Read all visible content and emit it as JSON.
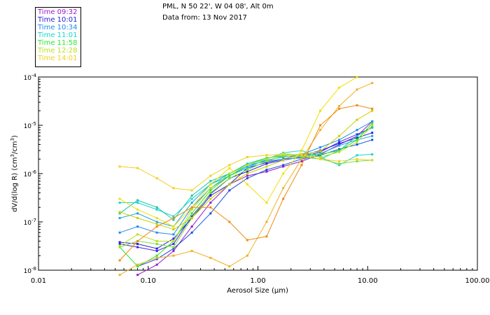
{
  "header": {
    "title": "PML, N 50 22', W 04 08', Alt 0m",
    "date": "Data from: 13 Nov 2017"
  },
  "legend": {
    "items": [
      {
        "label": "Time 09:32",
        "color": "#9a1ad0"
      },
      {
        "label": "Time 10:01",
        "color": "#2323d8"
      },
      {
        "label": "Time 10:34",
        "color": "#1e8cf0"
      },
      {
        "label": "Time 11:01",
        "color": "#18d6d0"
      },
      {
        "label": "Time 11:58",
        "color": "#2ee82e"
      },
      {
        "label": "Time 12:28",
        "color": "#b8e020"
      },
      {
        "label": "Time 14:01",
        "color": "#f2d020"
      }
    ]
  },
  "chart_data": {
    "type": "line",
    "title": "PML, N 50 22', W 04 08', Alt 0m",
    "subtitle": "Data from: 13 Nov 2017",
    "xlabel": "Aerosol Size (μm)",
    "ylabel_prefix": "dV/d(log R) (cm",
    "ylabel_mid": "/cm",
    "ylabel_suffix": ")",
    "ylabel_exp": "3",
    "xscale": "log",
    "yscale": "log",
    "xlim": [
      0.01,
      100
    ],
    "ylim": [
      1e-08,
      0.0001
    ],
    "legend_position": "top-left, outside plot",
    "xticks": [
      {
        "value": 0.01,
        "label": "0.01"
      },
      {
        "value": 0.1,
        "label": "0.10"
      },
      {
        "value": 1,
        "label": "1.00"
      },
      {
        "value": 10,
        "label": "10.00"
      },
      {
        "value": 100,
        "label": "100.00"
      }
    ],
    "yticks": [
      {
        "value": 1e-08,
        "base": "10",
        "exp": "-8"
      },
      {
        "value": 1e-07,
        "base": "10",
        "exp": "-7"
      },
      {
        "value": 1e-06,
        "base": "10",
        "exp": "-6"
      },
      {
        "value": 1e-05,
        "base": "10",
        "exp": "-5"
      },
      {
        "value": 0.0001,
        "base": "10",
        "exp": "-4"
      }
    ],
    "x": [
      0.055,
      0.08,
      0.12,
      0.17,
      0.25,
      0.37,
      0.55,
      0.8,
      1.2,
      1.7,
      2.5,
      3.7,
      5.5,
      8,
      11
    ],
    "series": [
      {
        "name": "Time 09:32",
        "color": "#9a1ad0",
        "values": [
          null,
          8e-09,
          1.3e-08,
          2.5e-08,
          8e-08,
          2.5e-07,
          6e-07,
          9e-07,
          1.1e-06,
          1.4e-06,
          1.8e-06,
          2.5e-06,
          4e-06,
          6e-06,
          1.2e-05
        ]
      },
      {
        "name": "Time 09:32",
        "color": "#4422e0",
        "values": [
          3.5e-08,
          3e-08,
          2.5e-08,
          3.5e-08,
          1.3e-07,
          3.8e-07,
          8e-07,
          1.1e-06,
          1.6e-06,
          1.9e-06,
          2.2e-06,
          2.8e-06,
          4.5e-06,
          6.5e-06,
          9e-06
        ]
      },
      {
        "name": "Time 10:01",
        "color": "#2323d8",
        "values": [
          3.8e-08,
          3.5e-08,
          2.8e-08,
          4.5e-08,
          1.2e-07,
          3.5e-07,
          6e-07,
          1.3e-06,
          1.7e-06,
          2e-06,
          2.4e-06,
          3e-06,
          4.2e-06,
          5.5e-06,
          7e-06
        ]
      },
      {
        "name": "Time 10:01",
        "color": "#1a50d8",
        "values": [
          null,
          1.2e-08,
          1.7e-08,
          2.8e-08,
          6e-08,
          1.5e-07,
          4.5e-07,
          8e-07,
          1.2e-06,
          1.5e-06,
          2e-06,
          2.4e-06,
          3.2e-06,
          4e-06,
          5e-06
        ]
      },
      {
        "name": "Time 10:34",
        "color": "#1e8cf0",
        "values": [
          6e-08,
          8e-08,
          6e-08,
          5.5e-08,
          2e-07,
          5e-07,
          9e-07,
          1.4e-06,
          1.9e-06,
          2.2e-06,
          2.5e-06,
          3.5e-06,
          5e-06,
          8e-06,
          1.2e-05
        ]
      },
      {
        "name": "Time 10:34",
        "color": "#1aa6e8",
        "values": [
          1.2e-07,
          1.5e-07,
          1e-07,
          8e-08,
          2.5e-07,
          6e-07,
          1e-06,
          1.5e-06,
          1.8e-06,
          2e-06,
          2.1e-06,
          2.6e-06,
          3.8e-06,
          5e-06,
          6e-06
        ]
      },
      {
        "name": "Time 11:01",
        "color": "#18d6d0",
        "values": [
          2.5e-07,
          2.5e-07,
          1.8e-07,
          1.3e-07,
          3e-07,
          6e-07,
          9e-07,
          1.3e-06,
          2e-06,
          2.7e-06,
          3e-06,
          2.2e-06,
          1.5e-06,
          2.4e-06,
          2.5e-06
        ]
      },
      {
        "name": "Time 11:01",
        "color": "#18c8a8",
        "values": [
          1.5e-07,
          2.8e-07,
          2e-07,
          1.1e-07,
          3.5e-07,
          7e-07,
          1e-06,
          1.6e-06,
          2.1e-06,
          2.3e-06,
          2.2e-06,
          2e-06,
          3e-06,
          6e-06,
          9e-06
        ]
      },
      {
        "name": "Time 11:58",
        "color": "#2ee82e",
        "values": [
          3e-08,
          1.2e-08,
          2e-08,
          4e-08,
          1.5e-07,
          4.5e-07,
          9e-07,
          1.5e-06,
          2.1e-06,
          2.4e-06,
          2.5e-06,
          2.5e-06,
          3e-06,
          5e-06,
          1.1e-05
        ]
      },
      {
        "name": "Time 11:58",
        "color": "#7ce030",
        "values": [
          3e-08,
          4e-08,
          3.5e-08,
          3e-08,
          1.2e-07,
          4e-07,
          8e-07,
          1.2e-06,
          1.8e-06,
          2.3e-06,
          2.3e-06,
          2e-06,
          1.6e-06,
          1.8e-06,
          1.9e-06
        ]
      },
      {
        "name": "Time 12:28",
        "color": "#b8e020",
        "values": [
          3.2e-08,
          5.5e-08,
          4e-08,
          4e-08,
          1.8e-07,
          5e-07,
          1e-06,
          1.5e-06,
          2e-06,
          2.6e-06,
          2.4e-06,
          2.2e-06,
          2.8e-06,
          4.5e-06,
          1e-05
        ]
      },
      {
        "name": "Time 12:28",
        "color": "#c8d000",
        "values": [
          1.6e-07,
          1.2e-07,
          9e-08,
          7e-08,
          1.2e-07,
          3e-07,
          6e-07,
          1e-06,
          1.4e-06,
          1.9e-06,
          2.5e-06,
          2.9e-06,
          6e-06,
          1.3e-05,
          2e-05
        ]
      },
      {
        "name": "Time 14:01",
        "color": "#f2d020",
        "values": [
          1.4e-06,
          1.3e-06,
          8e-07,
          5e-07,
          4.5e-07,
          9e-07,
          1.5e-06,
          2.2e-06,
          2.4e-06,
          2.5e-06,
          2.4e-06,
          2e-06,
          1.8e-06,
          2e-06,
          1.9e-06
        ]
      },
      {
        "name": "Time 14:01",
        "color": "#f0e000",
        "values": [
          3e-07,
          1.8e-07,
          1.2e-07,
          8e-08,
          2e-07,
          6e-07,
          1.3e-06,
          6e-07,
          2.5e-07,
          1e-06,
          3e-06,
          2e-05,
          6e-05,
          0.0001,
          null
        ]
      },
      {
        "name": "Time 14:01",
        "color": "#f0b020",
        "values": [
          8e-09,
          1.3e-08,
          1.8e-08,
          2e-08,
          2.5e-08,
          1.8e-08,
          1.2e-08,
          2e-08,
          1e-07,
          5e-07,
          2e-06,
          8e-06,
          2.5e-05,
          5.5e-05,
          7.5e-05
        ]
      },
      {
        "name": "Time 14:01",
        "color": "#f08a10",
        "values": [
          1.6e-08,
          4e-08,
          8e-08,
          1.2e-07,
          2e-07,
          2e-07,
          1e-07,
          4.2e-08,
          5e-08,
          3e-07,
          1.5e-06,
          1e-05,
          2.2e-05,
          2.6e-05,
          2.2e-05
        ]
      }
    ]
  }
}
